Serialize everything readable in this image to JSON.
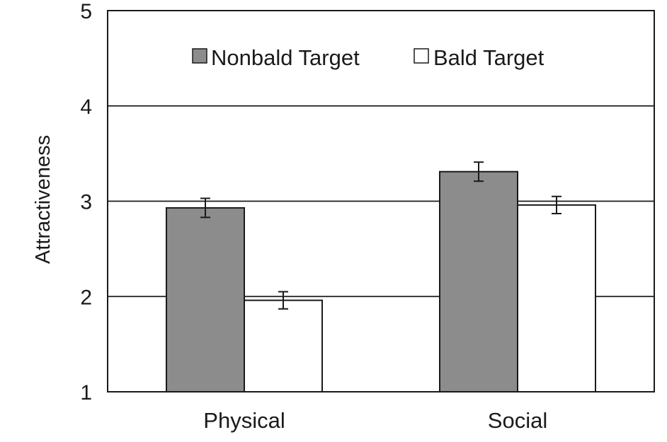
{
  "chart_data": {
    "type": "bar",
    "title": "",
    "xlabel": "",
    "ylabel": "Attractiveness",
    "ylim": [
      1,
      5
    ],
    "yticks": [
      1,
      2,
      3,
      4,
      5
    ],
    "ytick_labels": [
      "1",
      "2",
      "3",
      "4",
      "5"
    ],
    "grid": "horizontal major gridlines at 2, 3, 4",
    "legend_position": "top-center",
    "categories": [
      "Physical",
      "Social"
    ],
    "series": [
      {
        "name": "Nonbald Target",
        "color": "#8c8c8c",
        "values": [
          2.93,
          3.31
        ],
        "error": [
          0.1,
          0.1
        ]
      },
      {
        "name": "Bald Target",
        "color": "#ffffff",
        "values": [
          1.96,
          2.96
        ],
        "error": [
          0.09,
          0.09
        ]
      }
    ]
  }
}
